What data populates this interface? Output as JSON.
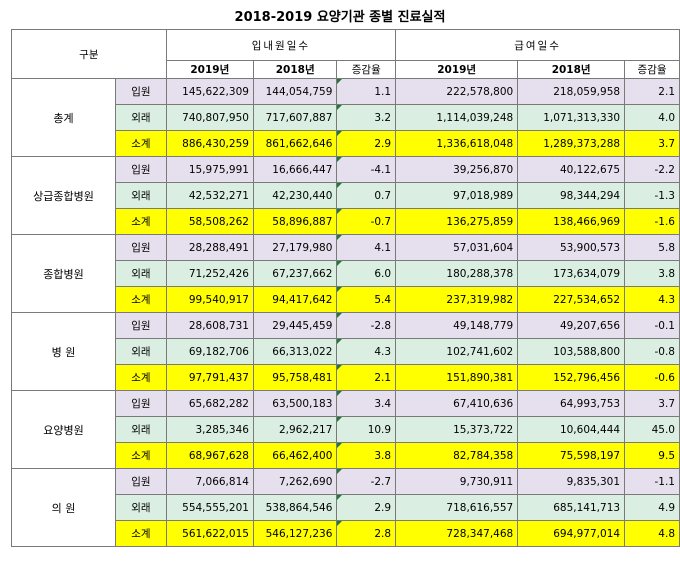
{
  "title": "2018-2019 요양기관 종별 진료실적",
  "headers": {
    "category": "구분",
    "inpatient_days": "입내원일수",
    "benefit_days": "급여일수",
    "y2019": "2019년",
    "y2018": "2018년",
    "rate": "증감율"
  },
  "groups": [
    {
      "name": "총계",
      "rows": [
        {
          "type": "입원",
          "a2019": "145,622,309",
          "a2018": "144,054,759",
          "arate": "1.1",
          "b2019": "222,578,800",
          "b2018": "218,059,958",
          "brate": "2.1"
        },
        {
          "type": "외래",
          "a2019": "740,807,950",
          "a2018": "717,607,887",
          "arate": "3.2",
          "b2019": "1,114,039,248",
          "b2018": "1,071,313,330",
          "brate": "4.0"
        },
        {
          "type": "소계",
          "a2019": "886,430,259",
          "a2018": "861,662,646",
          "arate": "2.9",
          "b2019": "1,336,618,048",
          "b2018": "1,289,373,288",
          "brate": "3.7"
        }
      ]
    },
    {
      "name": "상급종합병원",
      "rows": [
        {
          "type": "입원",
          "a2019": "15,975,991",
          "a2018": "16,666,447",
          "arate": "-4.1",
          "b2019": "39,256,870",
          "b2018": "40,122,675",
          "brate": "-2.2"
        },
        {
          "type": "외래",
          "a2019": "42,532,271",
          "a2018": "42,230,440",
          "arate": "0.7",
          "b2019": "97,018,989",
          "b2018": "98,344,294",
          "brate": "-1.3"
        },
        {
          "type": "소계",
          "a2019": "58,508,262",
          "a2018": "58,896,887",
          "arate": "-0.7",
          "b2019": "136,275,859",
          "b2018": "138,466,969",
          "brate": "-1.6"
        }
      ]
    },
    {
      "name": "종합병원",
      "rows": [
        {
          "type": "입원",
          "a2019": "28,288,491",
          "a2018": "27,179,980",
          "arate": "4.1",
          "b2019": "57,031,604",
          "b2018": "53,900,573",
          "brate": "5.8"
        },
        {
          "type": "외래",
          "a2019": "71,252,426",
          "a2018": "67,237,662",
          "arate": "6.0",
          "b2019": "180,288,378",
          "b2018": "173,634,079",
          "brate": "3.8"
        },
        {
          "type": "소계",
          "a2019": "99,540,917",
          "a2018": "94,417,642",
          "arate": "5.4",
          "b2019": "237,319,982",
          "b2018": "227,534,652",
          "brate": "4.3"
        }
      ]
    },
    {
      "name": "병 원",
      "rows": [
        {
          "type": "입원",
          "a2019": "28,608,731",
          "a2018": "29,445,459",
          "arate": "-2.8",
          "b2019": "49,148,779",
          "b2018": "49,207,656",
          "brate": "-0.1"
        },
        {
          "type": "외래",
          "a2019": "69,182,706",
          "a2018": "66,313,022",
          "arate": "4.3",
          "b2019": "102,741,602",
          "b2018": "103,588,800",
          "brate": "-0.8"
        },
        {
          "type": "소계",
          "a2019": "97,791,437",
          "a2018": "95,758,481",
          "arate": "2.1",
          "b2019": "151,890,381",
          "b2018": "152,796,456",
          "brate": "-0.6"
        }
      ]
    },
    {
      "name": "요양병원",
      "rows": [
        {
          "type": "입원",
          "a2019": "65,682,282",
          "a2018": "63,500,183",
          "arate": "3.4",
          "b2019": "67,410,636",
          "b2018": "64,993,753",
          "brate": "3.7"
        },
        {
          "type": "외래",
          "a2019": "3,285,346",
          "a2018": "2,962,217",
          "arate": "10.9",
          "b2019": "15,373,722",
          "b2018": "10,604,444",
          "brate": "45.0"
        },
        {
          "type": "소계",
          "a2019": "68,967,628",
          "a2018": "66,462,400",
          "arate": "3.8",
          "b2019": "82,784,358",
          "b2018": "75,598,197",
          "brate": "9.5"
        }
      ]
    },
    {
      "name": "의 원",
      "rows": [
        {
          "type": "입원",
          "a2019": "7,066,814",
          "a2018": "7,262,690",
          "arate": "-2.7",
          "b2019": "9,730,911",
          "b2018": "9,835,301",
          "brate": "-1.1"
        },
        {
          "type": "외래",
          "a2019": "554,555,201",
          "a2018": "538,864,546",
          "arate": "2.9",
          "b2019": "718,616,557",
          "b2018": "685,141,713",
          "brate": "4.9"
        },
        {
          "type": "소계",
          "a2019": "561,622,015",
          "a2018": "546,127,236",
          "arate": "2.8",
          "b2019": "728,347,468",
          "b2018": "694,977,014",
          "brate": "4.8"
        }
      ]
    }
  ]
}
